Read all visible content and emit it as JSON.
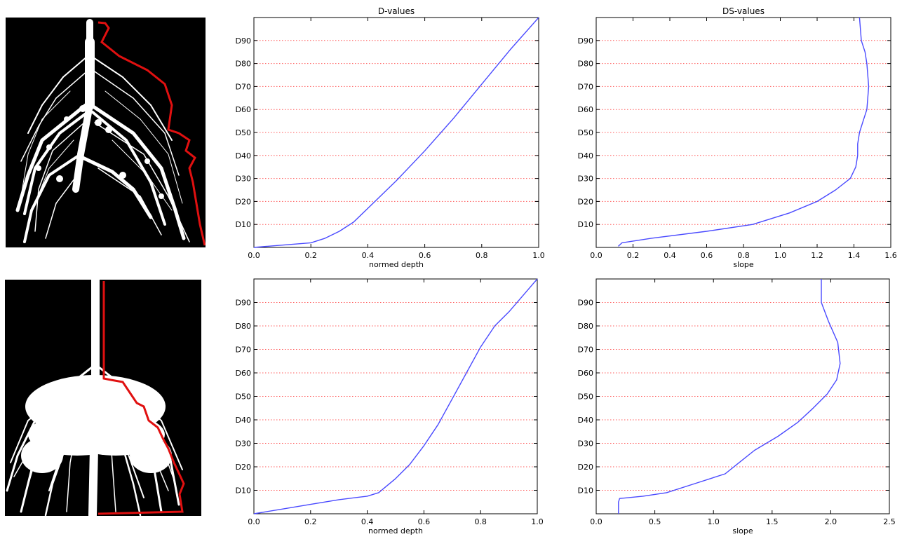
{
  "colors": {
    "curve": "#4a4aff",
    "grid": "#ff5a5a",
    "outline": "#e01010",
    "root": "#ffffff",
    "root_bg": "#000000",
    "axes": "#000000"
  },
  "root_images": [
    {
      "name": "root-image-top",
      "icon": "root-system-sparse"
    },
    {
      "name": "root-image-bottom",
      "icon": "root-system-dense"
    }
  ],
  "chart_data": [
    {
      "id": "d-values-top",
      "type": "line",
      "title": "D-values",
      "xlabel": "normed depth",
      "ylabel": "",
      "xlim": [
        0,
        1.0
      ],
      "ylim": [
        0,
        100
      ],
      "xticks": [
        0.0,
        0.2,
        0.4,
        0.6,
        0.8,
        1.0
      ],
      "xtick_labels": [
        "0.0",
        "0.2",
        "0.4",
        "0.6",
        "0.8",
        "1.0"
      ],
      "yticks": [
        10,
        20,
        30,
        40,
        50,
        60,
        70,
        80,
        90
      ],
      "ytick_labels": [
        "D10",
        "D20",
        "D30",
        "D40",
        "D50",
        "D60",
        "D70",
        "D80",
        "D90"
      ],
      "grid": "horizontal-dotted",
      "x": [
        0.0,
        0.1,
        0.2,
        0.25,
        0.3,
        0.35,
        0.4,
        0.5,
        0.6,
        0.7,
        0.8,
        0.9,
        1.0
      ],
      "y": [
        0,
        1,
        2,
        4,
        7,
        11,
        17,
        29,
        42,
        56,
        71,
        86,
        100
      ]
    },
    {
      "id": "ds-values-top",
      "type": "line",
      "title": "DS-values",
      "xlabel": "slope",
      "ylabel": "",
      "xlim": [
        0,
        1.6
      ],
      "ylim": [
        0,
        100
      ],
      "xticks": [
        0.0,
        0.2,
        0.4,
        0.6,
        0.8,
        1.0,
        1.2,
        1.4,
        1.6
      ],
      "xtick_labels": [
        "0.0",
        "0.2",
        "0.4",
        "0.6",
        "0.8",
        "1.0",
        "1.2",
        "1.4",
        "1.6"
      ],
      "yticks": [
        10,
        20,
        30,
        40,
        50,
        60,
        70,
        80,
        90
      ],
      "ytick_labels": [
        "D10",
        "D20",
        "D30",
        "D40",
        "D50",
        "D60",
        "D70",
        "D80",
        "D90"
      ],
      "grid": "horizontal-dotted",
      "x": [
        0.12,
        0.14,
        0.3,
        0.6,
        0.85,
        1.05,
        1.2,
        1.3,
        1.38,
        1.41,
        1.42,
        1.42,
        1.43,
        1.45,
        1.47,
        1.48,
        1.47,
        1.46,
        1.44,
        1.43
      ],
      "y": [
        0.5,
        2,
        4,
        7,
        10,
        15,
        20,
        25,
        30,
        35,
        40,
        45,
        50,
        55,
        60,
        70,
        80,
        85,
        90,
        100
      ]
    },
    {
      "id": "d-values-bottom",
      "type": "line",
      "title": "",
      "xlabel": "normed depth",
      "ylabel": "",
      "xlim": [
        0,
        1.0
      ],
      "ylim": [
        0,
        100
      ],
      "xticks": [
        0.0,
        0.2,
        0.4,
        0.6,
        0.8,
        1.0
      ],
      "xtick_labels": [
        "0.0",
        "0.2",
        "0.4",
        "0.6",
        "0.8",
        "1.0"
      ],
      "yticks": [
        10,
        20,
        30,
        40,
        50,
        60,
        70,
        80,
        90
      ],
      "ytick_labels": [
        "D10",
        "D20",
        "D30",
        "D40",
        "D50",
        "D60",
        "D70",
        "D80",
        "D90"
      ],
      "grid": "horizontal-dotted",
      "x": [
        0.0,
        0.1,
        0.2,
        0.3,
        0.4,
        0.44,
        0.5,
        0.55,
        0.6,
        0.65,
        0.7,
        0.75,
        0.8,
        0.85,
        0.9,
        1.0
      ],
      "y": [
        0,
        2,
        4,
        6,
        7.5,
        9,
        15,
        21,
        29,
        38,
        49,
        60,
        71,
        80,
        86,
        100
      ]
    },
    {
      "id": "ds-values-bottom",
      "type": "line",
      "title": "",
      "xlabel": "slope",
      "ylabel": "",
      "xlim": [
        0,
        2.5
      ],
      "ylim": [
        0,
        100
      ],
      "xticks": [
        0.0,
        0.5,
        1.0,
        1.5,
        2.0,
        2.5
      ],
      "xtick_labels": [
        "0.0",
        "0.5",
        "1.0",
        "1.5",
        "2.0",
        "2.5"
      ],
      "yticks": [
        10,
        20,
        30,
        40,
        50,
        60,
        70,
        80,
        90
      ],
      "ytick_labels": [
        "D10",
        "D20",
        "D30",
        "D40",
        "D50",
        "D60",
        "D70",
        "D80",
        "D90"
      ],
      "grid": "horizontal-dotted",
      "x": [
        0.19,
        0.19,
        0.2,
        0.4,
        0.6,
        0.85,
        1.1,
        1.2,
        1.35,
        1.55,
        1.72,
        1.85,
        1.97,
        2.05,
        2.08,
        2.06,
        1.98,
        1.92,
        1.92
      ],
      "y": [
        0,
        5,
        6.5,
        7.5,
        9,
        13,
        17,
        21,
        27,
        33,
        39,
        45,
        51,
        57,
        64,
        73,
        82,
        90,
        100
      ]
    }
  ]
}
